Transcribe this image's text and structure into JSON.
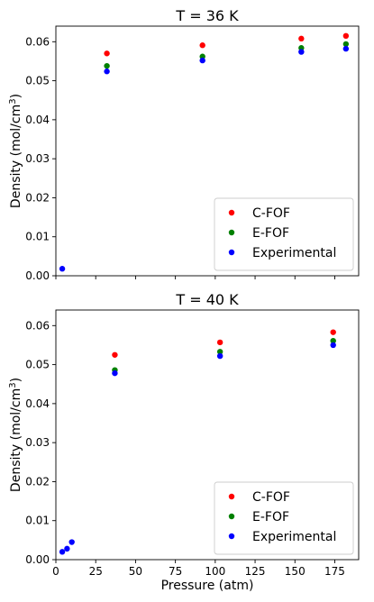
{
  "chart_data": [
    {
      "type": "scatter",
      "title": "T = 36 K",
      "xlabel": "",
      "ylabel": "Density (mol/cm",
      "ylabel_sup": "3",
      "ylabel_close": ")",
      "xlim": [
        0,
        190
      ],
      "ylim": [
        0,
        0.064
      ],
      "xticks": [
        0,
        25,
        50,
        75,
        100,
        125,
        150,
        175
      ],
      "xtick_labels_visible": false,
      "yticks": [
        0.0,
        0.01,
        0.02,
        0.03,
        0.04,
        0.05,
        0.06
      ],
      "ytick_labels": [
        "0.00",
        "0.01",
        "0.02",
        "0.03",
        "0.04",
        "0.05",
        "0.06"
      ],
      "legend": "lower-right",
      "grid": false,
      "series": [
        {
          "name": "C-FOF",
          "color": "#ff0000",
          "points": [
            [
              32,
              0.057
            ],
            [
              92,
              0.0591
            ],
            [
              154,
              0.0608
            ],
            [
              182,
              0.0615
            ]
          ]
        },
        {
          "name": "E-FOF",
          "color": "#008000",
          "points": [
            [
              32,
              0.0538
            ],
            [
              92,
              0.0562
            ],
            [
              154,
              0.0584
            ],
            [
              182,
              0.0594
            ]
          ]
        },
        {
          "name": "Experimental",
          "color": "#0000ff",
          "points": [
            [
              4,
              0.0018
            ],
            [
              32,
              0.0524
            ],
            [
              92,
              0.0552
            ],
            [
              154,
              0.0574
            ],
            [
              182,
              0.0582
            ]
          ]
        }
      ]
    },
    {
      "type": "scatter",
      "title": "T = 40 K",
      "xlabel": "Pressure (atm)",
      "ylabel": "Density (mol/cm",
      "ylabel_sup": "3",
      "ylabel_close": ")",
      "xlim": [
        0,
        190
      ],
      "ylim": [
        0,
        0.064
      ],
      "xticks": [
        0,
        25,
        50,
        75,
        100,
        125,
        150,
        175
      ],
      "xtick_labels": [
        "0",
        "25",
        "50",
        "75",
        "100",
        "125",
        "150",
        "175"
      ],
      "xtick_labels_visible": true,
      "yticks": [
        0.0,
        0.01,
        0.02,
        0.03,
        0.04,
        0.05,
        0.06
      ],
      "ytick_labels": [
        "0.00",
        "0.01",
        "0.02",
        "0.03",
        "0.04",
        "0.05",
        "0.06"
      ],
      "legend": "lower-right",
      "grid": false,
      "series": [
        {
          "name": "C-FOF",
          "color": "#ff0000",
          "points": [
            [
              37,
              0.0525
            ],
            [
              103,
              0.0557
            ],
            [
              174,
              0.0583
            ]
          ]
        },
        {
          "name": "E-FOF",
          "color": "#008000",
          "points": [
            [
              37,
              0.0486
            ],
            [
              103,
              0.0533
            ],
            [
              174,
              0.0561
            ]
          ]
        },
        {
          "name": "Experimental",
          "color": "#0000ff",
          "points": [
            [
              4,
              0.002
            ],
            [
              7,
              0.0028
            ],
            [
              10,
              0.0045
            ],
            [
              37,
              0.0478
            ],
            [
              103,
              0.0522
            ],
            [
              174,
              0.055
            ]
          ]
        }
      ]
    }
  ]
}
